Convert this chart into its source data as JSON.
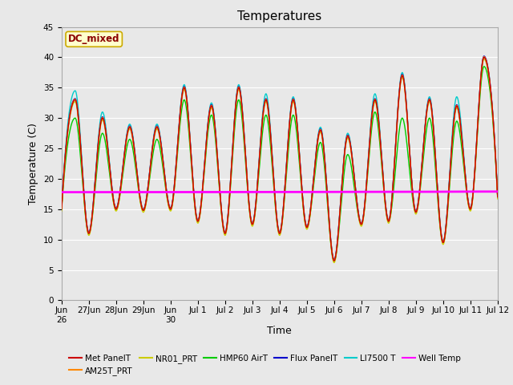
{
  "title": "Temperatures",
  "xlabel": "Time",
  "ylabel": "Temperature (C)",
  "ylim": [
    0,
    45
  ],
  "yticks": [
    0,
    5,
    10,
    15,
    20,
    25,
    30,
    35,
    40,
    45
  ],
  "bg_color": "#e8e8e8",
  "plot_bg_color": "#e8e8e8",
  "annotation_text": "DC_mixed",
  "annotation_color": "#8b0000",
  "annotation_bg": "#ffffcc",
  "annotation_border": "#ccaa00",
  "legend_entries": [
    {
      "label": "Met PanelT",
      "color": "#cc0000"
    },
    {
      "label": "AM25T_PRT",
      "color": "#ff8800"
    },
    {
      "label": "NR01_PRT",
      "color": "#cccc00"
    },
    {
      "label": "HMP60 AirT",
      "color": "#00cc00"
    },
    {
      "label": "Flux PanelT",
      "color": "#0000cc"
    },
    {
      "label": "LI7500 T",
      "color": "#00cccc"
    },
    {
      "label": "Well Temp",
      "color": "#ff00ff"
    }
  ],
  "xtick_labels": [
    "Jun\n26",
    "27Jun",
    "28Jun",
    "29Jun",
    "Jun\n30",
    "Jul 1",
    "Jul 2",
    "Jul 3",
    "Jul 4",
    "Jul 5",
    "Jul 6",
    "Jul 7",
    "Jul 8",
    "Jul 9",
    "Jul 10",
    "Jul 11",
    "Jul 12"
  ],
  "well_temp": [
    17.8,
    17.8,
    17.8,
    17.8,
    17.8,
    17.82,
    17.82,
    17.83,
    17.83,
    17.83,
    17.85,
    17.85,
    17.85,
    17.87,
    17.87,
    17.9,
    17.9
  ],
  "base_peaks": [
    15.0,
    33.0,
    11.0,
    30.0,
    15.0,
    28.5,
    14.8,
    28.5,
    15.0,
    35.0,
    13.0,
    32.0,
    11.0,
    35.0,
    12.5,
    33.0,
    11.0,
    33.0,
    12.0,
    28.0,
    6.5,
    27.0,
    12.5,
    33.0,
    13.0,
    37.0,
    14.5,
    33.0,
    9.5,
    32.0,
    15.0,
    40.0,
    17.0
  ],
  "cyan_peaks": [
    15.0,
    34.5,
    11.0,
    31.0,
    15.0,
    29.0,
    14.8,
    29.0,
    15.0,
    35.5,
    13.0,
    32.5,
    11.0,
    35.5,
    12.5,
    34.0,
    11.0,
    33.5,
    12.0,
    28.5,
    6.5,
    27.5,
    12.5,
    34.0,
    13.0,
    37.5,
    14.5,
    33.5,
    9.5,
    33.5,
    15.0,
    40.0,
    17.0
  ],
  "green_peaks": [
    15.0,
    30.0,
    11.0,
    27.5,
    15.0,
    26.5,
    14.8,
    26.5,
    15.0,
    33.0,
    13.0,
    30.5,
    11.0,
    33.0,
    12.5,
    30.5,
    11.0,
    30.5,
    12.0,
    26.0,
    6.5,
    24.0,
    12.5,
    31.0,
    13.0,
    30.0,
    14.5,
    30.0,
    9.5,
    29.5,
    15.0,
    38.5,
    17.0
  ],
  "linewidth": 1.0,
  "figsize": [
    6.4,
    4.8
  ],
  "dpi": 100
}
